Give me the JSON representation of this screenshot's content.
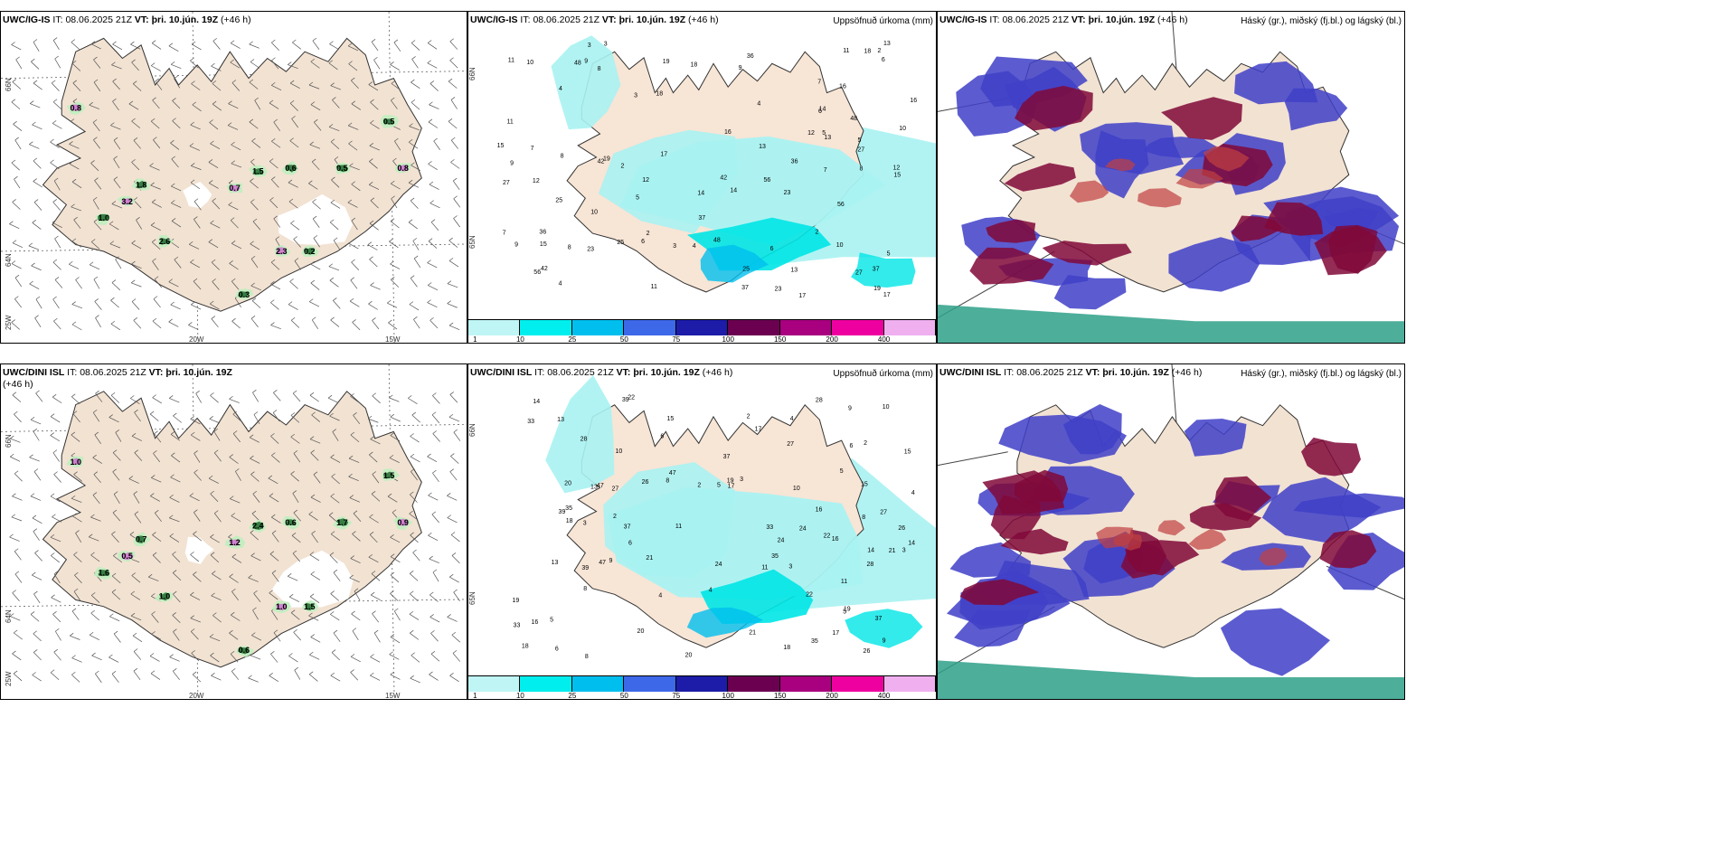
{
  "panels": [
    {
      "id": "p1",
      "model": "UWC/IG-IS",
      "it_label": "IT:",
      "it_value": "08.06.2025 21Z",
      "vt_label": "VT:",
      "vt_value": "þri. 10.jún. 19Z",
      "lead": "(+46 h)",
      "right_title": "",
      "type": "wind"
    },
    {
      "id": "p2",
      "model": "UWC/IG-IS",
      "it_label": "IT:",
      "it_value": "08.06.2025 21Z",
      "vt_label": "VT:",
      "vt_value": "þri. 10.jún. 19Z",
      "lead": "(+46 h)",
      "right_title": "Uppsöfnuð úrkoma (mm)",
      "type": "precip"
    },
    {
      "id": "p3",
      "model": "UWC/IG-IS",
      "it_label": "IT:",
      "it_value": "08.06.2025 21Z",
      "vt_label": "VT:",
      "vt_value": "þri. 10.jún. 19Z",
      "lead": "(+46 h)",
      "right_title": "Háský (gr.), miðský (fj.bl.) og lágský (bl.)",
      "type": "cloud"
    },
    {
      "id": "p4",
      "model": "UWC/DINI ISL",
      "it_label": "IT:",
      "it_value": "08.06.2025 21Z",
      "vt_label": "VT:",
      "vt_value": "þri. 10.jún. 19Z",
      "lead": "(+46 h)",
      "right_title": "",
      "type": "wind"
    },
    {
      "id": "p5",
      "model": "UWC/DINI ISL",
      "it_label": "IT:",
      "it_value": "08.06.2025 21Z",
      "vt_label": "VT:",
      "vt_value": "þri. 10.jún. 19Z",
      "lead": "(+46 h)",
      "right_title": "Uppsöfnuð úrkoma (mm)",
      "type": "precip"
    },
    {
      "id": "p6",
      "model": "UWC/DINI ISL",
      "it_label": "IT:",
      "it_value": "08.06.2025 21Z",
      "vt_label": "VT:",
      "vt_value": "þri. 10.jún. 19Z",
      "lead": "(+46 h)",
      "right_title": "Háský (gr.), miðský (fj.bl.) og lágský (bl.)",
      "type": "cloud"
    }
  ],
  "axes": {
    "lat_66": "66N",
    "lat_64": "64N",
    "lat_65": "65N",
    "lon_25": "25W",
    "lon_20": "20W",
    "lon_15": "15W"
  },
  "colorbar": {
    "labels": [
      "1",
      "10",
      "25",
      "50",
      "75",
      "100",
      "150",
      "200",
      "400"
    ],
    "colors": [
      "#bff5f5",
      "#00eeee",
      "#00bfee",
      "#3d68e8",
      "#1c1ca8",
      "#6b0050",
      "#a8007e",
      "#ee00a0",
      "#f0b0f0"
    ]
  },
  "precip_values_top": [
    "2",
    "3",
    "4",
    "5",
    "6",
    "7",
    "8",
    "9",
    "10",
    "11",
    "12",
    "13",
    "14",
    "15",
    "16",
    "17",
    "18",
    "19",
    "23",
    "25",
    "27",
    "36",
    "37",
    "42",
    "48",
    "56"
  ],
  "precip_values_bottom": [
    "2",
    "3",
    "4",
    "5",
    "6",
    "8",
    "9",
    "10",
    "11",
    "13",
    "14",
    "15",
    "16",
    "17",
    "18",
    "19",
    "20",
    "21",
    "22",
    "24",
    "26",
    "27",
    "28",
    "33",
    "35",
    "37",
    "39",
    "47"
  ],
  "wind_values_top": [
    "0.8",
    "0.5",
    "1.8",
    "3.2",
    "1.0",
    "2.6",
    "0.7",
    "1.5",
    "0.6",
    "0.8",
    "0.5",
    "0.3",
    "2.3",
    "0.2"
  ],
  "wind_values_bottom": [
    "1.0",
    "1.5",
    "0.7",
    "0.5",
    "1.6",
    "1.0",
    "1.2",
    "2.4",
    "0.6",
    "0.9",
    "1.7",
    "0.6"
  ]
}
